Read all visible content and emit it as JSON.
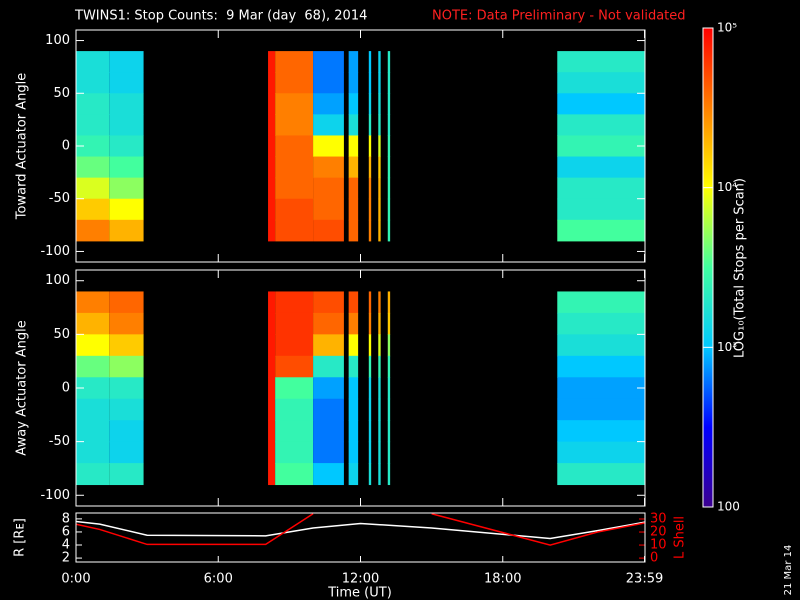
{
  "chart_data": [
    {
      "type": "heatmap",
      "title": "TWINS1: Stop Counts:  9 Mar (day  68), 2014",
      "note": "NOTE: Data Preliminary - Not validated",
      "ylabel": "Toward Actuator Angle",
      "ylim": [
        -110,
        110
      ],
      "yticks": [
        -100,
        -50,
        0,
        50,
        100
      ],
      "xlim": [
        0,
        24
      ],
      "angles": [
        90,
        70,
        50,
        30,
        10,
        -10,
        -30,
        -50,
        -70,
        -90
      ],
      "columns": [
        {
          "t": [
            0,
            1.4
          ],
          "values": [
            1600,
            1600,
            2000,
            2000,
            2500,
            4000,
            8000,
            16000,
            32000
          ]
        },
        {
          "t": [
            1.4,
            2.85
          ],
          "values": [
            1260,
            1260,
            1600,
            1600,
            2000,
            3200,
            5000,
            10000,
            20000
          ]
        },
        {
          "t": [
            8.1,
            8.4
          ],
          "values": [
            80000,
            80000,
            80000,
            80000,
            80000,
            80000,
            80000,
            80000,
            80000
          ]
        },
        {
          "t": [
            8.4,
            10
          ],
          "values": [
            40000,
            40000,
            32000,
            32000,
            40000,
            40000,
            40000,
            50000,
            50000
          ]
        },
        {
          "t": [
            10,
            11.3
          ],
          "values": [
            630,
            630,
            800,
            1260,
            10000,
            32000,
            40000,
            40000,
            50000
          ]
        },
        {
          "t": [
            11.5,
            11.9
          ],
          "values": [
            800,
            800,
            1000,
            1600,
            10000,
            20000,
            40000,
            40000,
            40000
          ]
        },
        {
          "t": [
            12.35,
            12.45
          ],
          "values": [
            1000,
            1000,
            1260,
            2000,
            10000,
            20000,
            32000,
            32000,
            32000
          ]
        },
        {
          "t": [
            12.75,
            12.85
          ],
          "values": [
            1260,
            1260,
            1600,
            2000,
            8000,
            16000,
            20000,
            20000,
            20000
          ]
        },
        {
          "t": [
            13.15,
            13.25
          ],
          "values": [
            2000,
            2000,
            2000,
            2000,
            2500,
            2500,
            2500,
            2500,
            2500
          ]
        },
        {
          "t": [
            20.3,
            24
          ],
          "values": [
            2000,
            1600,
            1000,
            2000,
            2500,
            1260,
            2000,
            2000,
            3200
          ]
        }
      ]
    },
    {
      "type": "heatmap",
      "ylabel": "Away Actuator Angle",
      "ylim": [
        -110,
        110
      ],
      "yticks": [
        -100,
        -50,
        0,
        50,
        100
      ],
      "xlim": [
        0,
        24
      ],
      "angles": [
        90,
        70,
        50,
        30,
        10,
        -10,
        -30,
        -50,
        -70,
        -90
      ],
      "columns": [
        {
          "t": [
            0,
            1.4
          ],
          "values": [
            32000,
            20000,
            10000,
            4000,
            2000,
            1600,
            1600,
            1600,
            2000
          ]
        },
        {
          "t": [
            1.4,
            2.85
          ],
          "values": [
            40000,
            32000,
            16000,
            5000,
            2000,
            1600,
            1260,
            1260,
            2000
          ]
        },
        {
          "t": [
            8.1,
            8.4
          ],
          "values": [
            80000,
            80000,
            80000,
            80000,
            80000,
            80000,
            80000,
            80000,
            80000
          ]
        },
        {
          "t": [
            8.4,
            10
          ],
          "values": [
            63000,
            63000,
            63000,
            50000,
            3200,
            2500,
            2500,
            2500,
            3200
          ]
        },
        {
          "t": [
            10,
            11.3
          ],
          "values": [
            50000,
            40000,
            20000,
            2000,
            800,
            630,
            630,
            630,
            1000
          ]
        },
        {
          "t": [
            11.5,
            11.9
          ],
          "values": [
            50000,
            32000,
            10000,
            2000,
            1000,
            1000,
            1000,
            1000,
            1260
          ]
        },
        {
          "t": [
            12.35,
            12.45
          ],
          "values": [
            40000,
            32000,
            10000,
            2500,
            1260,
            1260,
            1260,
            1260,
            1600
          ]
        },
        {
          "t": [
            12.75,
            12.85
          ],
          "values": [
            32000,
            20000,
            8000,
            2500,
            1600,
            1600,
            1600,
            1600,
            1600
          ]
        },
        {
          "t": [
            13.15,
            13.25
          ],
          "values": [
            20000,
            16000,
            5000,
            2500,
            2000,
            2000,
            2000,
            2000,
            2000
          ]
        },
        {
          "t": [
            20.3,
            24
          ],
          "values": [
            2500,
            2000,
            1600,
            1000,
            800,
            800,
            1000,
            1260,
            2000
          ]
        }
      ]
    },
    {
      "type": "line",
      "xlabel": "Time (UT)",
      "xlim": [
        0,
        24
      ],
      "xticks": [
        {
          "value": 0,
          "label": "0:00"
        },
        {
          "value": 6,
          "label": "6:00"
        },
        {
          "value": 12,
          "label": "12:00"
        },
        {
          "value": 18,
          "label": "18:00"
        },
        {
          "value": 23.98,
          "label": "23:59"
        }
      ],
      "x": [
        0,
        1,
        3,
        8,
        10,
        12,
        15,
        20,
        22,
        24
      ],
      "ylim": [
        1.4,
        8.9
      ],
      "yticks": [
        2,
        4,
        6,
        8
      ],
      "y2lim": [
        -3,
        34.6
      ],
      "y2ticks": [
        0,
        10,
        20,
        30
      ],
      "series": [
        {
          "name": "R [Rᴇ]",
          "color": "#ffffff",
          "values": [
            7.6,
            7.2,
            5.5,
            5.4,
            6.6,
            7.3,
            6.6,
            5.0,
            6.2,
            7.5
          ]
        },
        {
          "name": "L Shell",
          "color": "#ff0000",
          "axis": "y2",
          "values": [
            26,
            22,
            10.5,
            10.5,
            34,
            null,
            34,
            10,
            20,
            27
          ]
        }
      ]
    }
  ],
  "colorbar": {
    "label": "LOG₁₀(Total Stops per Scan)",
    "zlim": [
      100,
      100000
    ],
    "scale": "log",
    "ticks": [
      100,
      {
        "value": 1000,
        "label": "10³"
      },
      {
        "value": 10000,
        "label": "10⁴"
      },
      {
        "value": 100000,
        "label": "10⁵"
      }
    ],
    "colormap": [
      "#3c0090",
      "#0000ff",
      "#00c8ff",
      "#40ffa0",
      "#ffff00",
      "#ff8000",
      "#ff0000"
    ]
  },
  "stamp": "21 Mar 14"
}
